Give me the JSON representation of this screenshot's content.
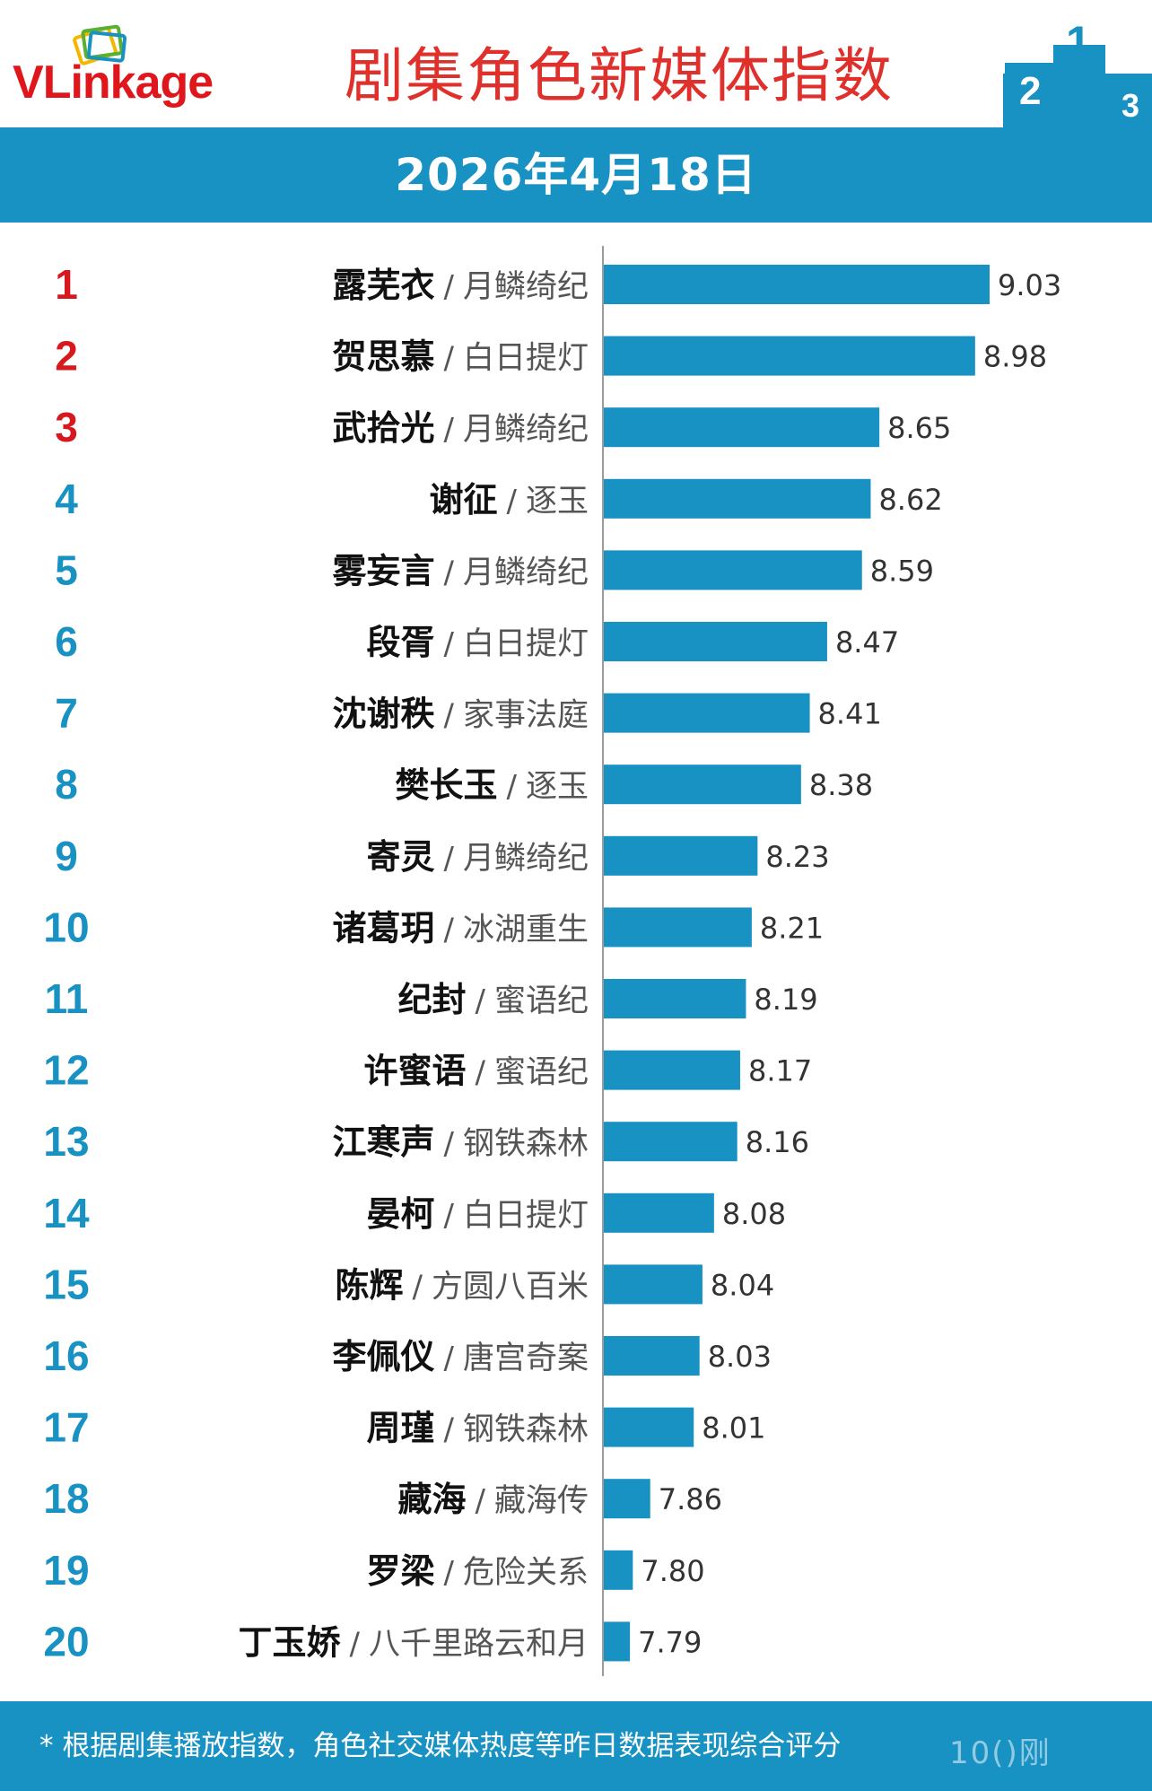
{
  "header": {
    "brand": "VLinkage",
    "brand_v": "V",
    "brand_l": "L",
    "brand_rest": "inkage",
    "title": "剧集角色新媒体指数",
    "podium_digits": [
      "2",
      "1",
      "3"
    ]
  },
  "date": "2026年4月18日",
  "colors": {
    "brand_red": "#e0161d",
    "title_red": "#e0302b",
    "bar_blue": "#1891c3",
    "rank_top3": "#d7181f",
    "rank_other": "#1891c3"
  },
  "chart_data": {
    "type": "bar",
    "orientation": "horizontal",
    "title": "剧集角色新媒体指数",
    "subtitle": "2026年4月18日",
    "grid": false,
    "legend": "none",
    "ranks": [
      "1",
      "2",
      "3",
      "4",
      "5",
      "6",
      "7",
      "8",
      "9",
      "10",
      "11",
      "12",
      "13",
      "14",
      "15",
      "16",
      "17",
      "18",
      "19",
      "20"
    ],
    "roles": [
      "露芜衣",
      "贺思慕",
      "武拾光",
      "谢征",
      "雾妄言",
      "段胥",
      "沈谢秩",
      "樊长玉",
      "寄灵",
      "诸葛玥",
      "纪封",
      "许蜜语",
      "江寒声",
      "晏柯",
      "陈辉",
      "李佩仪",
      "周瑾",
      "藏海",
      "罗梁",
      "丁玉娇"
    ],
    "dramas": [
      "月鳞绮纪",
      "白日提灯",
      "月鳞绮纪",
      "逐玉",
      "月鳞绮纪",
      "白日提灯",
      "家事法庭",
      "逐玉",
      "月鳞绮纪",
      "冰湖重生",
      "蜜语纪",
      "蜜语纪",
      "钢铁森林",
      "白日提灯",
      "方圆八百米",
      "唐宫奇案",
      "钢铁森林",
      "藏海传",
      "危险关系",
      "八千里路云和月"
    ],
    "values": [
      9.03,
      8.98,
      8.65,
      8.62,
      8.59,
      8.47,
      8.41,
      8.38,
      8.23,
      8.21,
      8.19,
      8.17,
      8.16,
      8.08,
      8.04,
      8.03,
      8.01,
      7.86,
      7.8,
      7.79
    ],
    "value_labels": [
      "9.03",
      "8.98",
      "8.65",
      "8.62",
      "8.59",
      "8.47",
      "8.41",
      "8.38",
      "8.23",
      "8.21",
      "8.19",
      "8.17",
      "8.16",
      "8.08",
      "8.04",
      "8.03",
      "8.01",
      "7.86",
      "7.80",
      "7.79"
    ],
    "xlim": [
      7.7,
      9.03
    ],
    "separator": "/"
  },
  "footer": {
    "note": "* 根据剧集播放指数，角色社交媒体热度等昨日数据表现综合评分",
    "mark": "10()刚"
  }
}
